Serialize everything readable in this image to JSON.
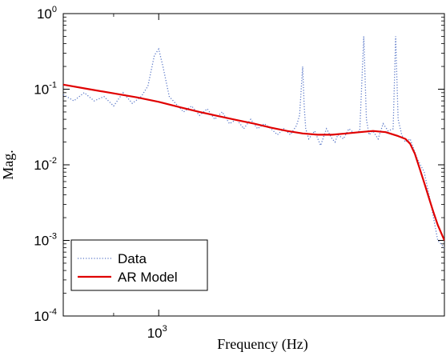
{
  "chart_data": {
    "type": "line",
    "title": "",
    "xlabel": "Frequency (Hz)",
    "ylabel": "Mag.",
    "xscale": "log",
    "yscale": "log",
    "xlim": [
      800,
      1950
    ],
    "ylim": [
      0.0001,
      1
    ],
    "grid": false,
    "legend_position": "bottom-left",
    "x_tick_labels": [
      {
        "base": "10",
        "exp": "3"
      }
    ],
    "y_tick_labels": [
      {
        "base": "10",
        "exp": "0"
      },
      {
        "base": "10",
        "exp": "-1"
      },
      {
        "base": "10",
        "exp": "-2"
      },
      {
        "base": "10",
        "exp": "-3"
      },
      {
        "base": "10",
        "exp": "-4"
      }
    ],
    "series": [
      {
        "name": "Data",
        "style": "dotted",
        "color": "#5a78c8",
        "x": [
          800,
          820,
          840,
          860,
          880,
          900,
          920,
          940,
          960,
          975,
          990,
          1000,
          1010,
          1025,
          1040,
          1060,
          1080,
          1100,
          1120,
          1140,
          1160,
          1180,
          1200,
          1220,
          1240,
          1260,
          1280,
          1300,
          1320,
          1340,
          1360,
          1380,
          1390,
          1400,
          1405,
          1410,
          1420,
          1440,
          1460,
          1480,
          1500,
          1510,
          1520,
          1540,
          1560,
          1580,
          1600,
          1615,
          1625,
          1635,
          1650,
          1670,
          1690,
          1710,
          1730,
          1740,
          1750,
          1765,
          1780,
          1800,
          1830,
          1860,
          1890,
          1920,
          1950
        ],
        "y": [
          0.085,
          0.07,
          0.09,
          0.07,
          0.08,
          0.06,
          0.09,
          0.065,
          0.08,
          0.11,
          0.28,
          0.34,
          0.2,
          0.08,
          0.065,
          0.05,
          0.06,
          0.045,
          0.055,
          0.04,
          0.05,
          0.035,
          0.04,
          0.03,
          0.04,
          0.03,
          0.035,
          0.03,
          0.025,
          0.03,
          0.025,
          0.033,
          0.045,
          0.2,
          0.06,
          0.03,
          0.022,
          0.028,
          0.018,
          0.03,
          0.022,
          0.02,
          0.025,
          0.022,
          0.03,
          0.026,
          0.028,
          0.5,
          0.04,
          0.025,
          0.028,
          0.022,
          0.035,
          0.028,
          0.03,
          0.5,
          0.04,
          0.025,
          0.02,
          0.022,
          0.012,
          0.008,
          0.003,
          0.001,
          0.0008
        ]
      },
      {
        "name": "AR Model",
        "style": "solid",
        "color": "#e00000",
        "x": [
          800,
          850,
          900,
          950,
          1000,
          1050,
          1100,
          1150,
          1200,
          1250,
          1300,
          1350,
          1400,
          1450,
          1500,
          1550,
          1600,
          1650,
          1700,
          1750,
          1780,
          1800,
          1820,
          1840,
          1860,
          1880,
          1900,
          1920,
          1950
        ],
        "y": [
          0.115,
          0.1,
          0.088,
          0.078,
          0.068,
          0.058,
          0.05,
          0.044,
          0.039,
          0.035,
          0.031,
          0.028,
          0.026,
          0.025,
          0.025,
          0.026,
          0.027,
          0.028,
          0.027,
          0.024,
          0.022,
          0.019,
          0.014,
          0.009,
          0.0058,
          0.0037,
          0.0024,
          0.0016,
          0.001
        ]
      }
    ]
  }
}
